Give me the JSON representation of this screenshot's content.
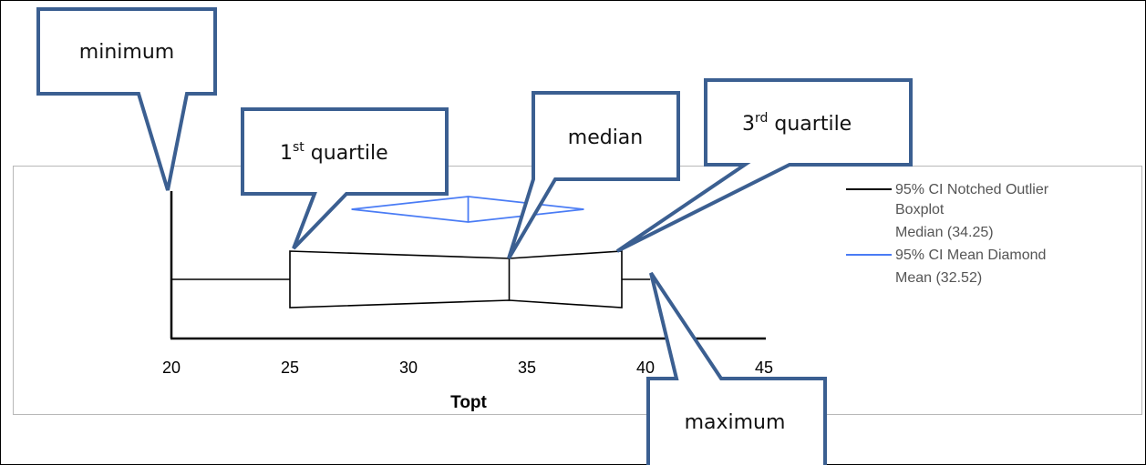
{
  "chart_data": {
    "type": "box",
    "xlabel": "Topt",
    "xlim": [
      20,
      45
    ],
    "x_ticks": [
      20,
      25,
      30,
      35,
      40,
      45
    ],
    "boxplot": {
      "name": "95% CI Notched Outlier Boxplot",
      "minimum": 20,
      "q1": 25,
      "median": 34.25,
      "q3": 39,
      "maximum": 40.2,
      "notch": [
        34.25,
        34.25
      ]
    },
    "mean_diamond": {
      "name": "95% CI Mean Diamond",
      "mean": 32.52,
      "ci": [
        27.6,
        37.4
      ]
    },
    "legend": [
      {
        "line1": "95% CI Notched Outlier",
        "line2": "Boxplot",
        "line3": "Median (34.25)",
        "color": "#000000"
      },
      {
        "line1": "95% CI Mean Diamond",
        "line2": "Mean (32.52)",
        "color": "#4a7cf5"
      }
    ],
    "legend_position": "right"
  },
  "callouts": {
    "minimum": "minimum",
    "q1_main": "1",
    "q1_sup": "st",
    "q1_rest": " quartile",
    "median": "median",
    "q3_main": "3",
    "q3_sup": "rd",
    "q3_rest": " quartile",
    "maximum": "maximum"
  },
  "colors": {
    "callout_border": "#3b5f91",
    "diamond": "#4a7cf5",
    "axis": "#000000",
    "frame": "#b8b8b8"
  }
}
